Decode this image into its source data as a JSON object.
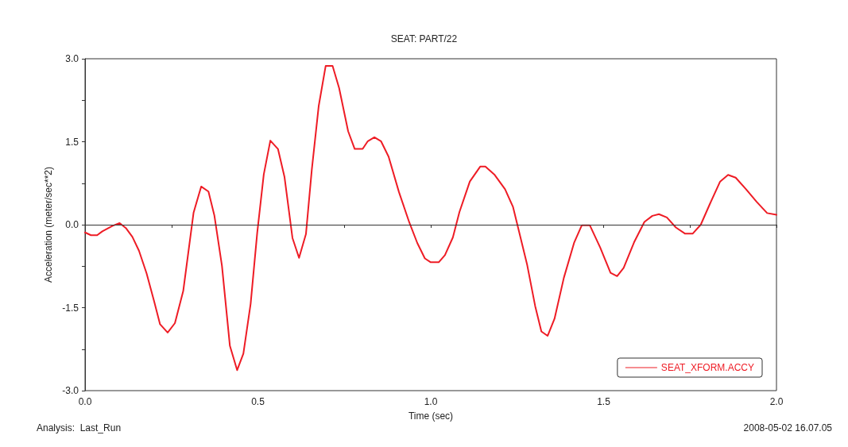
{
  "chart_data": {
    "type": "line",
    "title": "SEAT: PART/22",
    "xlabel": "Time (sec)",
    "ylabel": "Acceleration (meter/sec**2)",
    "annotations": [
      "Analysis:  Last_Run",
      "2008-05-02 16.07.05"
    ],
    "xlim": [
      0,
      2
    ],
    "xticks": [
      {
        "value": 0,
        "label": "0.0"
      },
      {
        "value": 0.25,
        "label": null
      },
      {
        "value": 0.5,
        "label": "0.5"
      },
      {
        "value": 0.75,
        "label": null
      },
      {
        "value": 1,
        "label": "1.0"
      },
      {
        "value": 1.25,
        "label": null
      },
      {
        "value": 1.5,
        "label": "1.5"
      },
      {
        "value": 1.75,
        "label": null
      },
      {
        "value": 2,
        "label": "2.0"
      }
    ],
    "ylim": [
      -3,
      3
    ],
    "yticks": [
      {
        "value": -3,
        "label": "-3.0"
      },
      {
        "value": -2.25,
        "label": null
      },
      {
        "value": -1.5,
        "label": "-1.5"
      },
      {
        "value": -0.75,
        "label": null
      },
      {
        "value": 0,
        "label": "0.0"
      },
      {
        "value": 0.75,
        "label": null
      },
      {
        "value": 1.5,
        "label": "1.5"
      },
      {
        "value": 2.25,
        "label": null
      },
      {
        "value": 3,
        "label": "3.0"
      }
    ],
    "ref_lines": [
      {
        "axis": "y",
        "value": 0,
        "color": "#333333"
      }
    ],
    "legend": "bottom right",
    "marker": "none",
    "line_style": "solid",
    "series": [
      {
        "name": "SEAT_XFORM.ACCY",
        "color": "#ee1c25",
        "x": [
          0,
          0.017,
          0.035,
          0.05,
          0.08,
          0.1,
          0.118,
          0.137,
          0.156,
          0.178,
          0.2,
          0.217,
          0.239,
          0.26,
          0.284,
          0.314,
          0.336,
          0.357,
          0.374,
          0.396,
          0.419,
          0.44,
          0.458,
          0.479,
          0.498,
          0.517,
          0.536,
          0.558,
          0.577,
          0.6,
          0.619,
          0.639,
          0.656,
          0.676,
          0.696,
          0.716,
          0.735,
          0.761,
          0.78,
          0.803,
          0.818,
          0.837,
          0.856,
          0.878,
          0.908,
          0.938,
          0.961,
          0.983,
          1.0,
          1.023,
          1.041,
          1.064,
          1.083,
          1.113,
          1.143,
          1.158,
          1.185,
          1.215,
          1.238,
          1.256,
          1.279,
          1.302,
          1.32,
          1.338,
          1.358,
          1.385,
          1.415,
          1.437,
          1.46,
          1.49,
          1.52,
          1.539,
          1.558,
          1.588,
          1.618,
          1.641,
          1.66,
          1.683,
          1.709,
          1.735,
          1.758,
          1.781,
          1.807,
          1.837,
          1.86,
          1.882,
          1.912,
          1.943,
          1.973,
          2.0
        ],
        "values": [
          -0.14,
          -0.19,
          -0.19,
          -0.12,
          -0.02,
          0.03,
          -0.06,
          -0.22,
          -0.47,
          -0.88,
          -1.39,
          -1.8,
          -1.95,
          -1.78,
          -1.2,
          0.22,
          0.69,
          0.6,
          0.17,
          -0.74,
          -2.19,
          -2.63,
          -2.33,
          -1.43,
          -0.15,
          0.91,
          1.52,
          1.37,
          0.86,
          -0.24,
          -0.6,
          -0.17,
          1.0,
          2.15,
          2.87,
          2.87,
          2.47,
          1.69,
          1.37,
          1.37,
          1.51,
          1.58,
          1.51,
          1.23,
          0.59,
          0.04,
          -0.33,
          -0.61,
          -0.68,
          -0.68,
          -0.55,
          -0.23,
          0.23,
          0.78,
          1.05,
          1.05,
          0.9,
          0.64,
          0.32,
          -0.14,
          -0.73,
          -1.47,
          -1.93,
          -2.01,
          -1.7,
          -0.96,
          -0.32,
          -0.01,
          -0.01,
          -0.41,
          -0.87,
          -0.93,
          -0.78,
          -0.32,
          0.05,
          0.16,
          0.19,
          0.13,
          -0.05,
          -0.16,
          -0.16,
          0.0,
          0.37,
          0.78,
          0.9,
          0.85,
          0.64,
          0.41,
          0.21,
          0.18
        ]
      }
    ]
  }
}
